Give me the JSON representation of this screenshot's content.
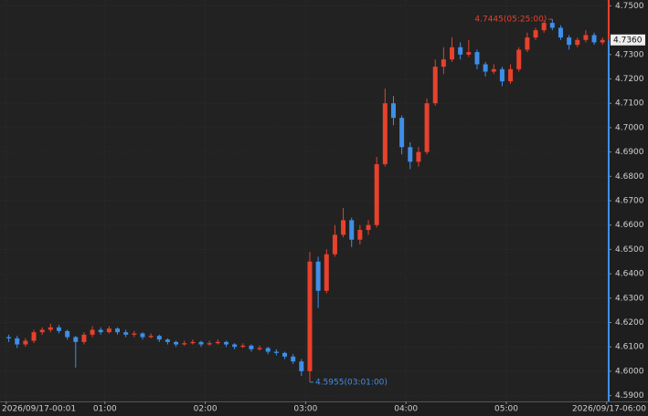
{
  "chart_data": {
    "type": "candlestick",
    "x": [
      "00:00",
      "00:05",
      "00:10",
      "00:15",
      "00:20",
      "00:25",
      "00:30",
      "00:35",
      "00:40",
      "00:45",
      "00:50",
      "00:55",
      "01:00",
      "01:05",
      "01:10",
      "01:15",
      "01:20",
      "01:25",
      "01:30",
      "01:35",
      "01:40",
      "01:45",
      "01:50",
      "01:55",
      "02:00",
      "02:05",
      "02:10",
      "02:15",
      "02:20",
      "02:25",
      "02:30",
      "02:35",
      "02:40",
      "02:45",
      "02:50",
      "02:55",
      "03:00",
      "03:05",
      "03:10",
      "03:15",
      "03:20",
      "03:25",
      "03:30",
      "03:35",
      "03:40",
      "03:45",
      "03:50",
      "03:55",
      "04:00",
      "04:05",
      "04:10",
      "04:15",
      "04:20",
      "04:25",
      "04:30",
      "04:35",
      "04:40",
      "04:45",
      "04:50",
      "04:55",
      "05:00",
      "05:05",
      "05:10",
      "05:15",
      "05:20",
      "05:25",
      "05:30",
      "05:35",
      "05:40",
      "05:45",
      "05:50",
      "05:55"
    ],
    "open": [
      4.614,
      4.6135,
      4.611,
      4.6125,
      4.616,
      4.617,
      4.618,
      4.6165,
      4.614,
      4.612,
      4.615,
      4.617,
      4.616,
      4.6175,
      4.616,
      4.615,
      4.6155,
      4.614,
      4.6145,
      4.613,
      4.612,
      4.611,
      4.6115,
      4.612,
      4.611,
      4.6115,
      4.612,
      4.611,
      4.61,
      4.6105,
      4.609,
      4.6095,
      4.608,
      4.6075,
      4.606,
      4.604,
      4.6,
      4.645,
      4.633,
      4.648,
      4.656,
      4.662,
      4.654,
      4.658,
      4.66,
      4.685,
      4.71,
      4.704,
      4.692,
      4.686,
      4.69,
      4.71,
      4.725,
      4.728,
      4.733,
      4.73,
      4.731,
      4.726,
      4.723,
      4.724,
      4.719,
      4.724,
      4.732,
      4.737,
      4.74,
      4.743,
      4.741,
      4.737,
      4.734,
      4.736,
      4.738,
      4.735
    ],
    "high": [
      4.615,
      4.6145,
      4.6135,
      4.617,
      4.618,
      4.6195,
      4.619,
      4.617,
      4.6145,
      4.616,
      4.6185,
      4.618,
      4.6185,
      4.618,
      4.617,
      4.6165,
      4.616,
      4.6155,
      4.615,
      4.6135,
      4.6125,
      4.6125,
      4.613,
      4.6125,
      4.6125,
      4.613,
      4.6125,
      4.6115,
      4.6115,
      4.611,
      4.6105,
      4.61,
      4.609,
      4.608,
      4.607,
      4.605,
      4.649,
      4.647,
      4.65,
      4.66,
      4.667,
      4.663,
      4.66,
      4.662,
      4.688,
      4.716,
      4.713,
      4.705,
      4.694,
      4.692,
      4.712,
      4.728,
      4.733,
      4.737,
      4.735,
      4.736,
      4.732,
      4.727,
      4.726,
      4.725,
      4.726,
      4.733,
      4.739,
      4.741,
      4.744,
      4.7445,
      4.742,
      4.738,
      4.737,
      4.74,
      4.739,
      4.737
    ],
    "low": [
      4.612,
      4.6095,
      4.61,
      4.6115,
      4.615,
      4.616,
      4.6155,
      4.613,
      4.6015,
      4.611,
      4.614,
      4.615,
      4.6155,
      4.615,
      4.614,
      4.614,
      4.613,
      4.6135,
      4.612,
      4.611,
      4.61,
      4.6105,
      4.611,
      4.61,
      4.6105,
      4.611,
      4.61,
      4.609,
      4.6095,
      4.608,
      4.6085,
      4.607,
      4.6065,
      4.605,
      4.603,
      4.598,
      4.5955,
      4.626,
      4.632,
      4.647,
      4.655,
      4.651,
      4.652,
      4.656,
      4.659,
      4.684,
      4.701,
      4.689,
      4.683,
      4.684,
      4.689,
      4.709,
      4.722,
      4.727,
      4.728,
      4.729,
      4.724,
      4.721,
      4.722,
      4.717,
      4.718,
      4.723,
      4.731,
      4.736,
      4.739,
      4.74,
      4.736,
      4.732,
      4.733,
      4.735,
      4.734,
      4.734
    ],
    "close": [
      4.6135,
      4.611,
      4.6125,
      4.616,
      4.617,
      4.618,
      4.6165,
      4.614,
      4.612,
      4.615,
      4.617,
      4.616,
      4.6175,
      4.616,
      4.615,
      4.6155,
      4.614,
      4.6145,
      4.613,
      4.612,
      4.611,
      4.6115,
      4.612,
      4.611,
      4.6115,
      4.612,
      4.611,
      4.61,
      4.6105,
      4.609,
      4.6095,
      4.608,
      4.6075,
      4.606,
      4.604,
      4.6,
      4.645,
      4.633,
      4.648,
      4.656,
      4.662,
      4.654,
      4.658,
      4.66,
      4.685,
      4.71,
      4.704,
      4.692,
      4.686,
      4.69,
      4.71,
      4.725,
      4.728,
      4.733,
      4.73,
      4.731,
      4.726,
      4.723,
      4.724,
      4.719,
      4.724,
      4.732,
      4.737,
      4.74,
      4.743,
      4.741,
      4.737,
      4.734,
      4.736,
      4.738,
      4.735,
      4.736
    ],
    "up_color": "#e8412c",
    "down_color": "#3f8ee8",
    "ylim": [
      4.5876,
      4.7524
    ],
    "yticks": [
      {
        "value": 4.59,
        "label": "4.5900"
      },
      {
        "value": 4.6,
        "label": "4.6000"
      },
      {
        "value": 4.61,
        "label": "4.6100"
      },
      {
        "value": 4.62,
        "label": "4.6200"
      },
      {
        "value": 4.63,
        "label": "4.6300"
      },
      {
        "value": 4.64,
        "label": "4.6400"
      },
      {
        "value": 4.65,
        "label": "4.6500"
      },
      {
        "value": 4.66,
        "label": "4.6600"
      },
      {
        "value": 4.67,
        "label": "4.6700"
      },
      {
        "value": 4.68,
        "label": "4.6800"
      },
      {
        "value": 4.69,
        "label": "4.6900"
      },
      {
        "value": 4.7,
        "label": "4.7000"
      },
      {
        "value": 4.71,
        "label": "4.7100"
      },
      {
        "value": 4.72,
        "label": "4.7200"
      },
      {
        "value": 4.73,
        "label": "4.7300"
      },
      {
        "value": 4.75,
        "label": "4.7500"
      }
    ],
    "xticks": [
      {
        "value": "00:01",
        "label": "2026/09/17-00:01"
      },
      "01:00",
      "02:00",
      "03:00",
      "04:00",
      "05:00",
      {
        "value": "06:00",
        "label": "2026/09/17-06:00"
      }
    ],
    "grid": true,
    "last_price": {
      "value": 4.736,
      "label": "4.7360"
    },
    "annotations": {
      "high": "4.7445(05:25:00)",
      "low": "4.5955(03:01:00)"
    }
  }
}
